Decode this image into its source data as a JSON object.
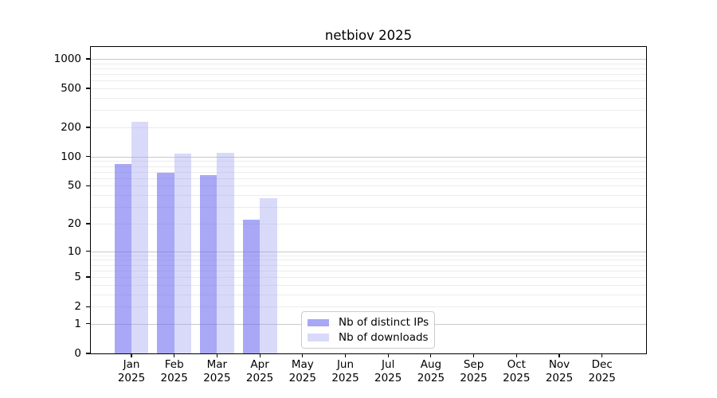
{
  "title": "netbiov 2025",
  "chart_data": {
    "type": "bar",
    "title": "netbiov 2025",
    "y_scale": "log10(value+1)",
    "x_tick_months": [
      "Jan",
      "Feb",
      "Mar",
      "Apr",
      "May",
      "Jun",
      "Jul",
      "Aug",
      "Sep",
      "Oct",
      "Nov",
      "Dec"
    ],
    "x_tick_year": "2025",
    "series": [
      {
        "name": "Nb of distinct IPs",
        "color": "rgba(110,110,240,0.6)",
        "values": [
          84,
          68,
          65,
          22,
          0,
          0,
          0,
          0,
          0,
          0,
          0,
          0
        ]
      },
      {
        "name": "Nb of downloads",
        "color": "rgba(160,160,240,0.4)",
        "values": [
          228,
          108,
          110,
          37,
          0,
          0,
          0,
          0,
          0,
          0,
          0,
          0
        ]
      }
    ],
    "y_ticks": [
      0,
      1,
      2,
      5,
      10,
      20,
      50,
      100,
      200,
      500,
      1000
    ],
    "y_major_gridlines": [
      1,
      10,
      100,
      1000
    ],
    "y_minor_gridlines": [
      2,
      3,
      4,
      5,
      6,
      7,
      8,
      9,
      20,
      30,
      40,
      50,
      60,
      70,
      80,
      90,
      200,
      300,
      400,
      500,
      600,
      700,
      800,
      900
    ],
    "ylim": [
      0,
      1320
    ],
    "grid": true,
    "legend_position": "lower center"
  },
  "colors": {
    "background": "#ffffff",
    "axis": "#000000",
    "major_grid": "#c8c8c8",
    "minor_grid": "#ececec",
    "legend_border": "#cccccc",
    "distinct_ips_swatch": "#a6a6f4",
    "downloads_swatch": "#d8d8f9"
  }
}
